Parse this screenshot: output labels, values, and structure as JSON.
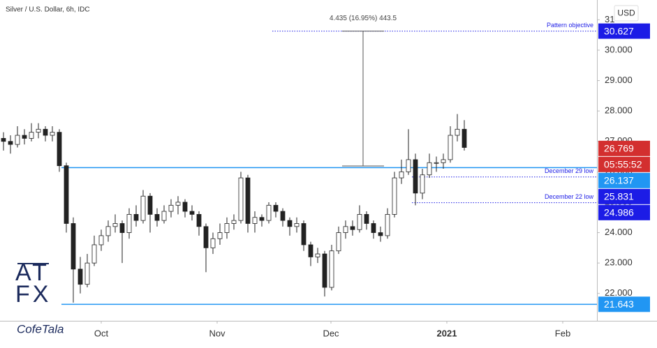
{
  "chart_data": {
    "type": "candlestick",
    "title": "Silver / U.S. Dollar, 6h, IDC",
    "currency": "USD",
    "open": [
      27.1,
      27.0,
      26.9,
      27.2,
      27.1,
      27.3,
      27.4,
      27.2,
      27.3,
      26.2,
      24.3,
      22.8,
      22.3,
      23.0,
      23.6,
      23.9,
      24.2,
      24.3,
      24.0,
      24.6,
      24.4,
      25.2,
      24.6,
      24.4,
      24.7,
      24.9,
      25.0,
      24.7,
      24.6,
      24.2,
      23.5,
      23.8,
      24.0,
      24.3,
      24.4,
      25.8,
      24.3,
      24.5,
      24.4,
      24.9,
      24.7,
      24.4,
      24.2,
      24.3,
      23.6,
      23.2,
      23.3,
      22.2,
      23.4,
      24.0,
      24.2,
      24.1,
      24.6,
      24.3,
      24.0,
      23.9,
      24.6,
      25.8,
      26.0,
      26.4,
      25.3,
      25.9,
      26.3,
      26.3,
      26.4,
      27.2,
      27.4
    ],
    "high": [
      27.3,
      27.2,
      27.5,
      27.4,
      27.6,
      27.6,
      27.5,
      27.5,
      27.4,
      26.3,
      24.5,
      23.2,
      23.3,
      23.9,
      24.1,
      24.4,
      24.6,
      24.4,
      24.8,
      24.9,
      25.4,
      25.3,
      24.8,
      24.9,
      25.1,
      25.2,
      25.1,
      24.9,
      24.7,
      24.3,
      24.0,
      24.3,
      24.5,
      24.6,
      26.0,
      25.9,
      24.7,
      24.6,
      25.0,
      25.0,
      24.8,
      24.5,
      24.5,
      24.4,
      23.7,
      23.5,
      23.4,
      23.6,
      24.2,
      24.4,
      24.4,
      24.9,
      24.7,
      24.4,
      24.2,
      24.8,
      26.0,
      26.4,
      27.4,
      26.6,
      26.1,
      26.6,
      26.5,
      26.6,
      27.5,
      27.9,
      27.7
    ],
    "low": [
      26.7,
      26.6,
      26.8,
      26.9,
      27.0,
      27.1,
      27.0,
      27.0,
      26.0,
      24.0,
      21.7,
      22.0,
      22.2,
      22.9,
      23.4,
      23.7,
      24.0,
      23.0,
      23.8,
      24.2,
      24.3,
      24.0,
      24.2,
      24.3,
      24.5,
      24.6,
      24.5,
      24.4,
      23.9,
      22.7,
      23.3,
      23.6,
      23.8,
      24.1,
      24.3,
      24.0,
      24.0,
      24.2,
      24.3,
      24.5,
      24.2,
      23.9,
      24.0,
      23.4,
      22.9,
      23.0,
      21.9,
      22.1,
      23.3,
      23.8,
      23.9,
      24.0,
      24.1,
      23.8,
      23.7,
      23.8,
      24.5,
      25.6,
      25.9,
      24.9,
      25.1,
      25.8,
      26.0,
      26.1,
      26.3,
      27.0,
      26.7
    ],
    "close": [
      27.0,
      26.9,
      27.2,
      27.1,
      27.3,
      27.4,
      27.2,
      27.3,
      26.2,
      24.3,
      22.8,
      22.3,
      23.0,
      23.6,
      23.9,
      24.2,
      24.3,
      24.0,
      24.6,
      24.4,
      25.2,
      24.6,
      24.4,
      24.7,
      24.9,
      25.0,
      24.7,
      24.6,
      24.2,
      23.5,
      23.8,
      24.0,
      24.3,
      24.4,
      25.8,
      24.3,
      24.5,
      24.4,
      24.9,
      24.7,
      24.4,
      24.2,
      24.3,
      23.6,
      23.2,
      23.3,
      22.2,
      23.4,
      24.0,
      24.2,
      24.1,
      24.6,
      24.3,
      24.0,
      23.9,
      24.6,
      25.8,
      26.0,
      26.4,
      25.3,
      25.9,
      26.3,
      26.3,
      26.4,
      27.2,
      27.4,
      26.8
    ],
    "up_color": "#ffffff",
    "down_color": "#222222",
    "xlim": [
      0,
      85.5
    ],
    "xticks": [
      {
        "value": 14.5,
        "label": "Oct"
      },
      {
        "value": 31.1,
        "label": "Nov"
      },
      {
        "value": 47.4,
        "label": "Dec"
      },
      {
        "value": 64,
        "label": "2021"
      },
      {
        "value": 80.6,
        "label": "Feb"
      }
    ],
    "ylim": [
      21.1,
      31.65
    ],
    "yticks": [
      {
        "value": 22,
        "label": "22.000"
      },
      {
        "value": 23,
        "label": "23.000"
      },
      {
        "value": 24,
        "label": "24.000"
      },
      {
        "value": 25,
        "label": "25.000"
      },
      {
        "value": 26,
        "label": "26.000"
      },
      {
        "value": 27,
        "label": "27.000"
      },
      {
        "value": 28,
        "label": "28.000"
      },
      {
        "value": 29,
        "label": "29.000"
      },
      {
        "value": 30,
        "label": "30.000"
      },
      31
    ],
    "levels": [
      {
        "value": 30.627,
        "color": "#1c1ce6",
        "style": "dotted",
        "note": "Pattern objective"
      },
      {
        "value": 26.137,
        "color": "#2196f3",
        "style": "solid"
      },
      {
        "value": 25.831,
        "color": "#1c1ce6",
        "style": "dotted",
        "note": "December 29 low"
      },
      {
        "value": 24.986,
        "color": "#1c1ce6",
        "style": "dotted",
        "note": "December 22 low"
      },
      {
        "value": 21.643,
        "color": "#2196f3",
        "style": "solid"
      }
    ],
    "last_price": {
      "value": 26.769,
      "countdown": "05:55:52",
      "color": "#d32f2f"
    },
    "measure": {
      "from": 26.192,
      "to": 30.627,
      "label": "4.435 (16.95%) 443.5"
    }
  },
  "branding": {
    "logo_top": "AT",
    "logo_bottom": "FX",
    "watermark": "CofeTala"
  }
}
